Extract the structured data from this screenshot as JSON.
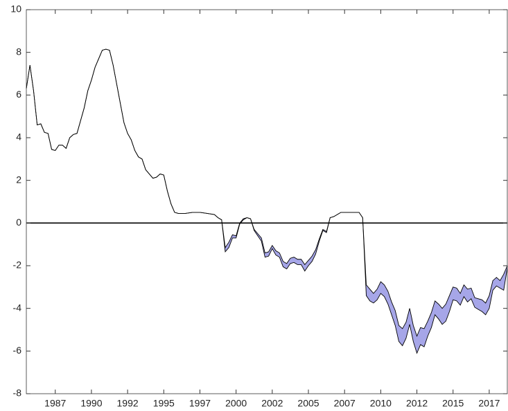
{
  "chart_data": {
    "type": "band",
    "x": [
      1985.5,
      1985.75,
      1986,
      1986.25,
      1986.5,
      1986.75,
      1987,
      1987.25,
      1987.5,
      1987.75,
      1988,
      1988.25,
      1988.5,
      1988.75,
      1989,
      1989.25,
      1989.5,
      1989.75,
      1990,
      1990.25,
      1990.5,
      1990.75,
      1991,
      1991.25,
      1991.5,
      1991.75,
      1992,
      1992.25,
      1992.5,
      1992.75,
      1993,
      1993.25,
      1993.5,
      1993.75,
      1994,
      1994.25,
      1994.5,
      1994.75,
      1995,
      1995.25,
      1995.5,
      1995.75,
      1996,
      1996.5,
      1997,
      1997.5,
      1998,
      1998.5,
      1998.75,
      1999,
      1999.25,
      1999.5,
      1999.75,
      2000,
      2000.25,
      2000.5,
      2000.75,
      2001,
      2001.25,
      2001.5,
      2001.75,
      2002,
      2002.25,
      2002.5,
      2002.75,
      2003,
      2003.25,
      2003.5,
      2003.75,
      2004,
      2004.25,
      2004.5,
      2004.75,
      2005,
      2005.25,
      2005.5,
      2005.75,
      2006,
      2006.25,
      2006.5,
      2006.75,
      2007,
      2007.25,
      2008,
      2008.5,
      2008.75,
      2009,
      2009.25,
      2009.5,
      2009.75,
      2010,
      2010.25,
      2010.5,
      2010.75,
      2011,
      2011.25,
      2011.5,
      2011.75,
      2012,
      2012.25,
      2012.5,
      2012.75,
      2013,
      2013.25,
      2013.5,
      2013.75,
      2014,
      2014.25,
      2014.5,
      2014.75,
      2015,
      2015.25,
      2015.5,
      2015.75,
      2016,
      2016.25,
      2016.5,
      2016.75,
      2017,
      2017.25,
      2017.5,
      2017.75,
      2018,
      2018.25,
      2018.5,
      2018.75
    ],
    "series": [
      {
        "color": "#000000",
        "values": [
          6.3,
          7.4,
          6.2,
          4.6,
          4.65,
          4.25,
          4.2,
          3.45,
          3.4,
          3.65,
          3.65,
          3.5,
          4.0,
          4.15,
          4.2,
          4.8,
          5.4,
          6.2,
          6.7,
          7.3,
          7.7,
          8.1,
          8.15,
          8.1,
          7.4,
          6.5,
          5.6,
          4.7,
          4.2,
          3.9,
          3.4,
          3.1,
          3.0,
          2.5,
          2.3,
          2.1,
          2.15,
          2.3,
          2.25,
          1.5,
          0.9,
          0.5,
          0.45,
          0.45,
          0.5,
          0.5,
          0.45,
          0.4,
          0.25,
          0.15,
          -1.15,
          -0.9,
          -0.55,
          -0.6,
          0,
          0.2,
          0.25,
          0.2,
          -0.3,
          -0.5,
          -0.7,
          -1.4,
          -1.35,
          -1.05,
          -1.3,
          -1.4,
          -1.8,
          -1.9,
          -1.65,
          -1.6,
          -1.7,
          -1.7,
          -1.95,
          -1.75,
          -1.55,
          -1.25,
          -0.75,
          -0.3,
          -0.4,
          0.25,
          0.3,
          0.4,
          0.5,
          0.5,
          0.5,
          0.25,
          -2.9,
          -3.1,
          -3.3,
          -3.1,
          -2.75,
          -2.9,
          -3.2,
          -3.7,
          -4.1,
          -4.8,
          -4.95,
          -4.65,
          -4.0,
          -4.8,
          -5.3,
          -4.9,
          -4.95,
          -4.6,
          -4.2,
          -3.65,
          -3.8,
          -4.0,
          -3.8,
          -3.4,
          -3.0,
          -3.05,
          -3.3,
          -2.9,
          -3.1,
          -3.05,
          -3.5,
          -3.55,
          -3.6,
          -3.75,
          -3.4,
          -2.7,
          -2.55,
          -2.7,
          -2.4,
          -2.0
        ]
      },
      {
        "color": "#000000",
        "values": [
          6.3,
          7.4,
          6.2,
          4.6,
          4.65,
          4.25,
          4.2,
          3.45,
          3.4,
          3.65,
          3.65,
          3.5,
          4.0,
          4.15,
          4.2,
          4.8,
          5.4,
          6.2,
          6.7,
          7.3,
          7.7,
          8.1,
          8.15,
          8.1,
          7.4,
          6.5,
          5.6,
          4.7,
          4.2,
          3.9,
          3.4,
          3.1,
          3.0,
          2.5,
          2.3,
          2.1,
          2.15,
          2.3,
          2.25,
          1.5,
          0.9,
          0.5,
          0.45,
          0.45,
          0.5,
          0.5,
          0.45,
          0.4,
          0.25,
          0.15,
          -1.35,
          -1.15,
          -0.7,
          -0.7,
          -0.05,
          0.15,
          0.25,
          0.2,
          -0.35,
          -0.6,
          -0.85,
          -1.6,
          -1.55,
          -1.2,
          -1.5,
          -1.6,
          -2.05,
          -2.15,
          -1.9,
          -1.85,
          -1.95,
          -1.95,
          -2.25,
          -2.0,
          -1.8,
          -1.45,
          -0.85,
          -0.35,
          -0.45,
          0.25,
          0.3,
          0.4,
          0.5,
          0.5,
          0.5,
          0.25,
          -3.4,
          -3.65,
          -3.75,
          -3.6,
          -3.3,
          -3.45,
          -3.8,
          -4.3,
          -4.8,
          -5.55,
          -5.75,
          -5.4,
          -4.75,
          -5.55,
          -6.1,
          -5.7,
          -5.8,
          -5.3,
          -4.9,
          -4.3,
          -4.5,
          -4.75,
          -4.6,
          -4.15,
          -3.6,
          -3.65,
          -3.85,
          -3.45,
          -3.7,
          -3.55,
          -3.95,
          -4.05,
          -4.15,
          -4.3,
          -4.0,
          -3.15,
          -2.95,
          -3.05,
          -3.15,
          -2.1
        ]
      }
    ],
    "band_color": "#a6a6e8",
    "reference_line": 0,
    "xlim": [
      1985.5,
      2018.75
    ],
    "xticks": [
      {
        "value": 1987.5,
        "label": "1987"
      },
      1990,
      {
        "value": 1992.5,
        "label": "1992"
      },
      1995,
      {
        "value": 1997.5,
        "label": "1997"
      },
      2000,
      {
        "value": 2002.5,
        "label": "2002"
      },
      2005,
      {
        "value": 2007.5,
        "label": "2007"
      },
      2010,
      {
        "value": 2012.5,
        "label": "2012"
      },
      2015,
      {
        "value": 2017.5,
        "label": "2017"
      }
    ],
    "ylim": [
      -8,
      10
    ],
    "yticks": [
      -8,
      -6,
      -4,
      -2,
      0,
      2,
      4,
      6,
      8,
      10
    ]
  }
}
